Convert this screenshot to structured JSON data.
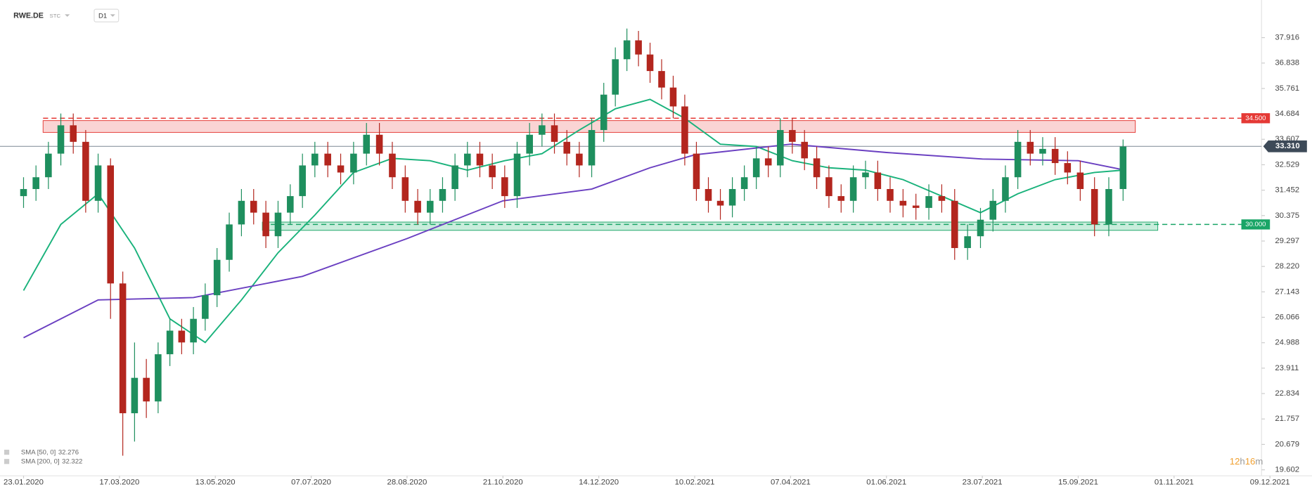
{
  "chart_data": {
    "type": "candlestick",
    "symbol": "RWE.DE",
    "chart_mode": "STC",
    "interval": "D1",
    "x": [
      "23.01.2020",
      "30.01.2020",
      "06.02.2020",
      "13.02.2020",
      "20.02.2020",
      "27.02.2020",
      "05.03.2020",
      "12.03.2020",
      "19.03.2020",
      "26.03.2020",
      "02.04.2020",
      "09.04.2020",
      "16.04.2020",
      "23.04.2020",
      "30.04.2020",
      "07.05.2020",
      "14.05.2020",
      "21.05.2020",
      "28.05.2020",
      "04.06.2020",
      "11.06.2020",
      "18.06.2020",
      "25.06.2020",
      "02.07.2020",
      "09.07.2020",
      "16.07.2020",
      "23.07.2020",
      "30.07.2020",
      "06.08.2020",
      "13.08.2020",
      "20.08.2020",
      "27.08.2020",
      "03.09.2020",
      "10.09.2020",
      "17.09.2020",
      "24.09.2020",
      "01.10.2020",
      "08.10.2020",
      "15.10.2020",
      "22.10.2020",
      "29.10.2020",
      "05.11.2020",
      "12.11.2020",
      "19.11.2020",
      "26.11.2020",
      "03.12.2020",
      "10.12.2020",
      "17.12.2020",
      "24.12.2020",
      "31.12.2020",
      "07.01.2021",
      "14.01.2021",
      "21.01.2021",
      "28.01.2021",
      "04.02.2021",
      "11.02.2021",
      "18.02.2021",
      "25.02.2021",
      "04.03.2021",
      "11.03.2021",
      "18.03.2021",
      "25.03.2021",
      "01.04.2021",
      "08.04.2021",
      "15.04.2021",
      "22.04.2021",
      "29.04.2021",
      "06.05.2021",
      "13.05.2021",
      "20.05.2021",
      "27.05.2021",
      "03.06.2021",
      "10.06.2021",
      "17.06.2021",
      "24.06.2021",
      "01.07.2021",
      "08.07.2021",
      "15.07.2021",
      "22.07.2021",
      "29.07.2021",
      "05.08.2021",
      "12.08.2021",
      "19.08.2021",
      "26.08.2021",
      "02.09.2021",
      "09.09.2021",
      "16.09.2021",
      "23.09.2021",
      "30.09.2021",
      "07.10.2021"
    ],
    "open": [
      31.2,
      31.5,
      32.0,
      33.0,
      34.2,
      33.5,
      31.0,
      32.5,
      27.5,
      22.0,
      23.5,
      22.5,
      24.5,
      25.5,
      25.0,
      26.0,
      27.0,
      28.5,
      30.0,
      31.0,
      30.5,
      29.5,
      30.5,
      31.2,
      32.5,
      33.0,
      32.5,
      32.2,
      33.0,
      33.8,
      33.0,
      32.0,
      31.0,
      30.5,
      31.0,
      31.5,
      32.5,
      33.0,
      32.5,
      32.0,
      31.2,
      33.0,
      33.8,
      34.2,
      33.5,
      33.0,
      32.5,
      34.0,
      35.5,
      37.0,
      37.8,
      37.2,
      36.5,
      35.8,
      35.0,
      33.0,
      31.5,
      31.0,
      30.8,
      31.5,
      32.0,
      32.8,
      32.5,
      34.0,
      33.5,
      32.8,
      32.0,
      31.2,
      31.0,
      32.0,
      32.2,
      31.5,
      31.0,
      30.8,
      30.7,
      31.2,
      31.0,
      29.0,
      29.5,
      30.2,
      31.0,
      32.0,
      33.5,
      33.0,
      33.2,
      32.6,
      32.2,
      31.5,
      30.0,
      31.5
    ],
    "high": [
      32.0,
      32.5,
      33.5,
      34.7,
      34.7,
      34.0,
      33.0,
      32.8,
      28.0,
      25.0,
      24.3,
      25.0,
      26.0,
      26.0,
      26.5,
      27.5,
      29.0,
      30.5,
      31.5,
      31.5,
      31.0,
      31.0,
      31.7,
      33.0,
      33.5,
      33.5,
      33.0,
      33.5,
      34.3,
      34.3,
      33.5,
      32.5,
      31.5,
      31.5,
      32.0,
      33.0,
      33.5,
      33.5,
      33.0,
      32.5,
      33.5,
      34.3,
      34.7,
      34.7,
      34.0,
      33.5,
      34.5,
      36.0,
      37.5,
      38.3,
      38.2,
      37.7,
      37.0,
      36.3,
      35.5,
      33.5,
      32.0,
      31.5,
      32.0,
      32.5,
      33.3,
      33.3,
      34.5,
      34.5,
      34.0,
      33.3,
      32.5,
      31.7,
      32.5,
      32.7,
      32.7,
      32.0,
      31.5,
      31.3,
      31.7,
      31.7,
      31.5,
      30.0,
      30.7,
      31.5,
      32.5,
      34.0,
      34.0,
      33.7,
      33.7,
      33.1,
      32.7,
      32.0,
      32.0,
      33.6
    ],
    "low": [
      30.7,
      31.0,
      31.5,
      32.5,
      33.0,
      30.5,
      30.5,
      26.0,
      20.2,
      20.8,
      21.8,
      22.0,
      24.0,
      24.5,
      24.5,
      25.5,
      26.5,
      28.0,
      29.5,
      30.0,
      29.0,
      29.0,
      30.0,
      30.7,
      32.0,
      32.0,
      31.7,
      31.7,
      32.5,
      32.5,
      31.5,
      30.5,
      30.0,
      30.0,
      30.5,
      31.0,
      32.0,
      32.0,
      31.5,
      30.7,
      30.7,
      32.5,
      33.3,
      33.0,
      32.5,
      32.0,
      32.0,
      33.5,
      35.0,
      36.5,
      36.7,
      36.0,
      35.3,
      34.5,
      32.5,
      31.0,
      30.5,
      30.2,
      30.3,
      31.0,
      31.5,
      32.0,
      32.0,
      33.0,
      32.3,
      31.5,
      30.7,
      30.5,
      30.5,
      31.5,
      31.0,
      30.5,
      30.3,
      30.2,
      30.2,
      30.5,
      28.5,
      28.5,
      29.0,
      29.7,
      30.5,
      31.5,
      32.5,
      32.5,
      32.1,
      31.7,
      31.0,
      29.5,
      29.5,
      31.0
    ],
    "close": [
      31.5,
      32.0,
      33.0,
      34.2,
      33.5,
      31.0,
      32.5,
      27.5,
      22.0,
      23.5,
      22.5,
      24.5,
      25.5,
      25.0,
      26.0,
      27.0,
      28.5,
      30.0,
      31.0,
      30.5,
      29.5,
      30.5,
      31.2,
      32.5,
      33.0,
      32.5,
      32.2,
      33.0,
      33.8,
      33.0,
      32.0,
      31.0,
      30.5,
      31.0,
      31.5,
      32.5,
      33.0,
      32.5,
      32.0,
      31.2,
      33.0,
      33.8,
      34.2,
      33.5,
      33.0,
      32.5,
      34.0,
      35.5,
      37.0,
      37.8,
      37.2,
      36.5,
      35.8,
      35.0,
      33.0,
      31.5,
      31.0,
      30.8,
      31.5,
      32.0,
      32.8,
      32.5,
      34.0,
      33.5,
      32.8,
      32.0,
      31.2,
      31.0,
      32.0,
      32.2,
      31.5,
      31.0,
      30.8,
      30.7,
      31.2,
      31.0,
      29.0,
      29.5,
      30.2,
      31.0,
      32.0,
      33.5,
      33.0,
      33.2,
      32.6,
      32.2,
      31.5,
      30.0,
      31.5,
      33.3
    ],
    "up_color": "#1e8f5e",
    "down_color": "#b3261e",
    "ylim": [
      19.35,
      39.51
    ],
    "yticks": [
      37.916,
      36.838,
      35.761,
      34.684,
      33.607,
      32.529,
      31.452,
      30.375,
      29.297,
      {
        "value": 28.22,
        "label": "28.220"
      },
      27.143,
      26.066,
      24.988,
      23.911,
      22.834,
      21.757,
      20.679,
      19.602
    ],
    "xticks": [
      "23.01.2020",
      "17.03.2020",
      "13.05.2020",
      "07.07.2020",
      "28.08.2020",
      "21.10.2020",
      "14.12.2020",
      "10.02.2021",
      "07.04.2021",
      "01.06.2021",
      "23.07.2021",
      "15.09.2021",
      "01.11.2021",
      "09.12.2021"
    ],
    "indicators": [
      {
        "name": "SMA [50, 0]",
        "last": 32.276,
        "color": "#19b27b",
        "x": [
          "23.01.2020",
          "13.02.2020",
          "05.03.2020",
          "26.03.2020",
          "16.04.2020",
          "07.05.2020",
          "28.05.2020",
          "18.06.2020",
          "09.07.2020",
          "30.07.2020",
          "20.08.2020",
          "10.09.2020",
          "01.10.2020",
          "22.10.2020",
          "12.11.2020",
          "03.12.2020",
          "24.12.2020",
          "14.01.2021",
          "04.02.2021",
          "25.02.2021",
          "18.03.2021",
          "08.04.2021",
          "29.04.2021",
          "20.05.2021",
          "10.06.2021",
          "01.07.2021",
          "22.07.2021",
          "12.08.2021",
          "02.09.2021",
          "23.09.2021",
          "07.10.2021"
        ],
        "values": [
          27.2,
          30.0,
          31.3,
          29.0,
          26.0,
          25.0,
          26.8,
          28.8,
          30.4,
          32.2,
          32.8,
          32.7,
          32.3,
          32.7,
          33.0,
          34.0,
          34.9,
          35.3,
          34.5,
          33.4,
          33.3,
          32.7,
          32.4,
          32.3,
          31.9,
          31.2,
          30.5,
          31.3,
          31.9,
          32.2,
          32.3
        ]
      },
      {
        "name": "SMA [200, 0]",
        "last": 32.322,
        "color": "#6a3fc1",
        "x": [
          "23.01.2020",
          "05.03.2020",
          "30.04.2020",
          "02.07.2020",
          "28.08.2020",
          "21.10.2020",
          "10.12.2020",
          "14.01.2021",
          "10.02.2021",
          "07.04.2021",
          "01.06.2021",
          "23.07.2021",
          "15.09.2021",
          "07.10.2021"
        ],
        "values": [
          25.2,
          26.8,
          26.9,
          27.8,
          29.4,
          31.0,
          31.5,
          32.4,
          32.95,
          33.4,
          33.05,
          32.77,
          32.7,
          32.32
        ]
      }
    ],
    "zones": [
      {
        "from": 33.9,
        "to": 34.4,
        "start": "03.02.2020",
        "end": "13.10.2021",
        "fill": "#f9cccc",
        "color": "#e53935",
        "level": {
          "value": 34.5,
          "label": "34.500"
        }
      },
      {
        "from": 29.75,
        "to": 30.1,
        "start": "09.06.2020",
        "end": "24.10.2021",
        "fill": "#bfead6",
        "color": "#1aa567",
        "level": {
          "value": 30.0,
          "label": "30.000"
        }
      }
    ],
    "last_price": {
      "value": 33.31,
      "label": "33.310"
    },
    "timer": [
      "12",
      "h",
      "16",
      "m"
    ]
  }
}
